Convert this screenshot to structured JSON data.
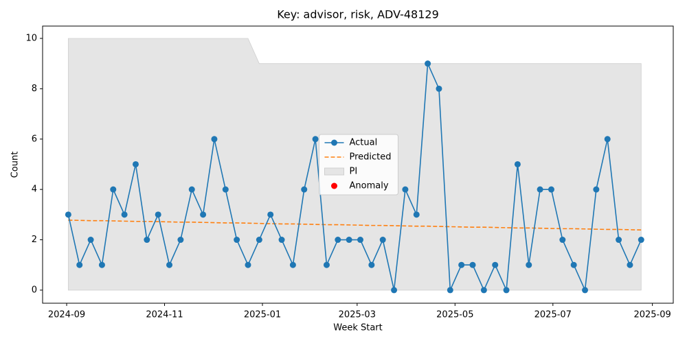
{
  "chart_data": {
    "type": "line",
    "title": "Key: advisor, risk, ADV-48129",
    "x_label": "Week Start",
    "y_label": "Count",
    "x": [
      "2024-09-02",
      "2024-09-09",
      "2024-09-16",
      "2024-09-23",
      "2024-09-30",
      "2024-10-07",
      "2024-10-14",
      "2024-10-21",
      "2024-10-28",
      "2024-11-04",
      "2024-11-11",
      "2024-11-18",
      "2024-11-25",
      "2024-12-02",
      "2024-12-09",
      "2024-12-16",
      "2024-12-23",
      "2024-12-30",
      "2025-01-06",
      "2025-01-13",
      "2025-01-20",
      "2025-01-27",
      "2025-02-03",
      "2025-02-10",
      "2025-02-17",
      "2025-02-24",
      "2025-03-03",
      "2025-03-10",
      "2025-03-17",
      "2025-03-24",
      "2025-03-31",
      "2025-04-07",
      "2025-04-14",
      "2025-04-21",
      "2025-04-28",
      "2025-05-05",
      "2025-05-12",
      "2025-05-19",
      "2025-05-26",
      "2025-06-02",
      "2025-06-09",
      "2025-06-16",
      "2025-06-23",
      "2025-06-30",
      "2025-07-07",
      "2025-07-14",
      "2025-07-21",
      "2025-07-28",
      "2025-08-04",
      "2025-08-11",
      "2025-08-18",
      "2025-08-25"
    ],
    "series": [
      {
        "name": "Actual",
        "kind": "line-markers",
        "color": "#1f77b4",
        "values": [
          3,
          1,
          2,
          1,
          4,
          3,
          5,
          2,
          3,
          1,
          2,
          4,
          3,
          6,
          4,
          2,
          1,
          2,
          3,
          2,
          1,
          4,
          6,
          1,
          2,
          2,
          2,
          1,
          2,
          0,
          4,
          3,
          9,
          8,
          0,
          1,
          1,
          0,
          1,
          0,
          5,
          1,
          4,
          4,
          2,
          1,
          0,
          4,
          6,
          2,
          1,
          2
        ]
      },
      {
        "name": "Predicted",
        "kind": "dashed",
        "color": "#ff7f0e",
        "values": [
          2.78,
          2.77,
          2.76,
          2.76,
          2.75,
          2.74,
          2.73,
          2.73,
          2.72,
          2.71,
          2.7,
          2.7,
          2.69,
          2.68,
          2.67,
          2.67,
          2.66,
          2.65,
          2.64,
          2.63,
          2.63,
          2.62,
          2.61,
          2.6,
          2.6,
          2.59,
          2.58,
          2.57,
          2.57,
          2.56,
          2.55,
          2.54,
          2.54,
          2.53,
          2.52,
          2.51,
          2.5,
          2.5,
          2.49,
          2.48,
          2.47,
          2.47,
          2.46,
          2.45,
          2.44,
          2.44,
          2.43,
          2.42,
          2.41,
          2.41,
          2.4,
          2.39
        ]
      },
      {
        "name": "PI",
        "kind": "band",
        "color": "#e5e5e5",
        "lower": [
          0,
          0,
          0,
          0,
          0,
          0,
          0,
          0,
          0,
          0,
          0,
          0,
          0,
          0,
          0,
          0,
          0,
          0,
          0,
          0,
          0,
          0,
          0,
          0,
          0,
          0,
          0,
          0,
          0,
          0,
          0,
          0,
          0,
          0,
          0,
          0,
          0,
          0,
          0,
          0,
          0,
          0,
          0,
          0,
          0,
          0,
          0,
          0,
          0,
          0,
          0,
          0
        ],
        "upper": [
          10,
          10,
          10,
          10,
          10,
          10,
          10,
          10,
          10,
          10,
          10,
          10,
          10,
          10,
          10,
          10,
          10,
          9,
          9,
          9,
          9,
          9,
          9,
          9,
          9,
          9,
          9,
          9,
          9,
          9,
          9,
          9,
          9,
          9,
          9,
          9,
          9,
          9,
          9,
          9,
          9,
          9,
          9,
          9,
          9,
          9,
          9,
          9,
          9,
          9,
          9,
          9
        ]
      },
      {
        "name": "Anomaly",
        "kind": "points",
        "color": "#ff0000",
        "values": [
          null,
          null,
          null,
          null,
          null,
          null,
          null,
          null,
          null,
          null,
          null,
          null,
          null,
          null,
          null,
          null,
          null,
          null,
          null,
          null,
          null,
          null,
          null,
          null,
          null,
          null,
          null,
          null,
          null,
          null,
          null,
          null,
          null,
          null,
          null,
          null,
          null,
          null,
          null,
          null,
          null,
          null,
          null,
          null,
          null,
          null,
          null,
          null,
          null,
          null,
          null,
          null
        ]
      }
    ],
    "xlim": [
      "2024-08-17",
      "2025-09-14"
    ],
    "xticks": [
      {
        "value": "2024-09-01",
        "label": "2024-09"
      },
      {
        "value": "2024-11-01",
        "label": "2024-11"
      },
      {
        "value": "2025-01-01",
        "label": "2025-01"
      },
      {
        "value": "2025-03-01",
        "label": "2025-03"
      },
      {
        "value": "2025-05-01",
        "label": "2025-05"
      },
      {
        "value": "2025-07-01",
        "label": "2025-07"
      },
      {
        "value": "2025-09-01",
        "label": "2025-09"
      }
    ],
    "ylim": [
      -0.52,
      10.49
    ],
    "yticks": [
      0,
      2,
      4,
      6,
      8,
      10
    ],
    "legend": "center"
  }
}
